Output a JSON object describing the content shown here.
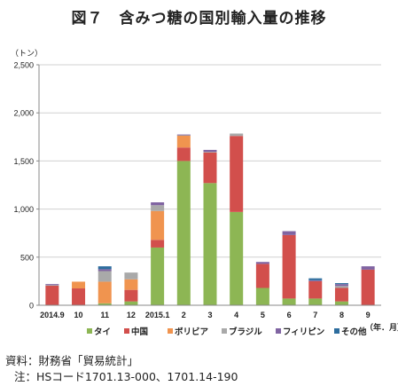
{
  "figure": {
    "title": "図７　含みつ糖の国別輸入量の推移",
    "source_label": "資料：財務省「貿易統計」",
    "note_label": "注：HSコード1701.13-000、1701.14-190"
  },
  "chart_data": {
    "type": "bar",
    "stacked": true,
    "title": "",
    "ylabel": "（トン）",
    "xlabel": "（年．月）",
    "ylim": [
      0,
      2500
    ],
    "yticks": [
      0,
      500,
      1000,
      1500,
      2000,
      2500
    ],
    "ytick_labels": [
      "0",
      "500",
      "1,000",
      "1,500",
      "2,000",
      "2,500"
    ],
    "grid": true,
    "legend": "bottom",
    "categories": [
      "2014.9",
      "10",
      "11",
      "12",
      "2015.1",
      "2",
      "3",
      "4",
      "5",
      "6",
      "7",
      "8",
      "9"
    ],
    "series": [
      {
        "name": "タイ",
        "color": "#8DB654",
        "values": [
          0,
          0,
          20,
          40,
          600,
          1500,
          1270,
          970,
          180,
          70,
          70,
          40,
          0
        ]
      },
      {
        "name": "中国",
        "color": "#D24F4C",
        "values": [
          205,
          175,
          0,
          120,
          80,
          140,
          320,
          790,
          250,
          660,
          180,
          140,
          370
        ]
      },
      {
        "name": "ボリビア",
        "color": "#F0944F",
        "values": [
          0,
          70,
          225,
          110,
          300,
          125,
          0,
          0,
          0,
          0,
          0,
          0,
          0
        ]
      },
      {
        "name": "ブラジル",
        "color": "#A9A9A9",
        "values": [
          5,
          0,
          110,
          70,
          60,
          5,
          5,
          25,
          0,
          0,
          0,
          20,
          0
        ]
      },
      {
        "name": "フィリピン",
        "color": "#8064A2",
        "values": [
          10,
          0,
          20,
          0,
          30,
          5,
          20,
          0,
          20,
          40,
          10,
          20,
          35
        ]
      },
      {
        "name": "その他",
        "color": "#2D6D9E",
        "values": [
          0,
          0,
          30,
          0,
          0,
          0,
          0,
          0,
          0,
          0,
          20,
          10,
          0
        ]
      }
    ]
  }
}
